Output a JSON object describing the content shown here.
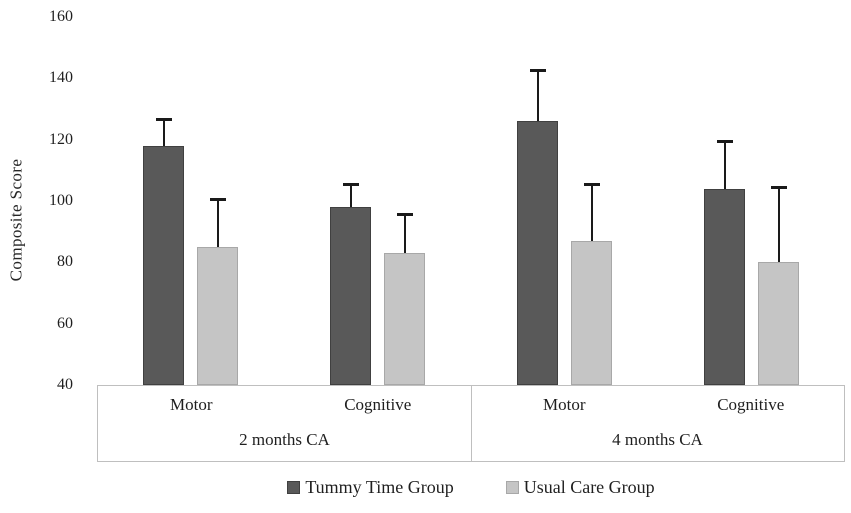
{
  "chart_data": {
    "type": "bar",
    "title": "",
    "xlabel": "",
    "ylabel": "Composite Score",
    "ylim": [
      40,
      160
    ],
    "yticks": [
      40,
      60,
      80,
      100,
      120,
      140,
      160
    ],
    "grid": false,
    "legend_position": "bottom",
    "groups": [
      {
        "label": "2 months CA",
        "categories": [
          "Motor",
          "Cognitive"
        ]
      },
      {
        "label": "4 months CA",
        "categories": [
          "Motor",
          "Cognitive"
        ]
      }
    ],
    "categories": [
      "2 months CA - Motor",
      "2 months CA - Cognitive",
      "4 months CA - Motor",
      "4 months CA - Cognitive"
    ],
    "series": [
      {
        "name": "Tummy Time Group",
        "color": "#595959",
        "border_color": "#404040",
        "values": [
          118,
          98,
          126,
          104
        ],
        "error_plus": [
          9,
          8,
          17,
          16
        ]
      },
      {
        "name": "Usual Care Group",
        "color": "#c5c5c5",
        "border_color": "#a8a8a8",
        "values": [
          85,
          83,
          87,
          80
        ],
        "error_plus": [
          16,
          13,
          19,
          25
        ]
      }
    ]
  },
  "colors": {
    "background": "#ffffff",
    "axis_line": "#bfbfbf",
    "error_bar": "#1a1a1a",
    "text": "#1f1f1f"
  }
}
